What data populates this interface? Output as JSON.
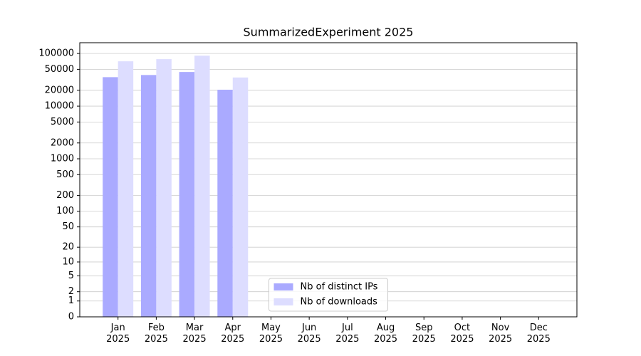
{
  "chart_data": {
    "type": "bar",
    "title": "SummarizedExperiment 2025",
    "categories": [
      "Jan\n2025",
      "Feb\n2025",
      "Mar\n2025",
      "Apr\n2025",
      "May\n2025",
      "Jun\n2025",
      "Jul\n2025",
      "Aug\n2025",
      "Sep\n2025",
      "Oct\n2025",
      "Nov\n2025",
      "Dec\n2025"
    ],
    "series": [
      {
        "name": "Nb of distinct IPs",
        "color": "#aaaaff",
        "values": [
          35500,
          39000,
          44500,
          20500,
          null,
          null,
          null,
          null,
          null,
          null,
          null,
          null
        ]
      },
      {
        "name": "Nb of downloads",
        "color": "#ddddff",
        "values": [
          71000,
          78000,
          91000,
          35000,
          null,
          null,
          null,
          null,
          null,
          null,
          null,
          null
        ]
      }
    ],
    "y_scale": "log1p",
    "ylim": [
      0,
      160000
    ],
    "yticks": [
      0,
      1,
      2,
      5,
      10,
      20,
      50,
      100,
      200,
      500,
      1000,
      2000,
      5000,
      10000,
      20000,
      50000,
      100000
    ],
    "grid": true,
    "legend_loc": "lower center"
  }
}
